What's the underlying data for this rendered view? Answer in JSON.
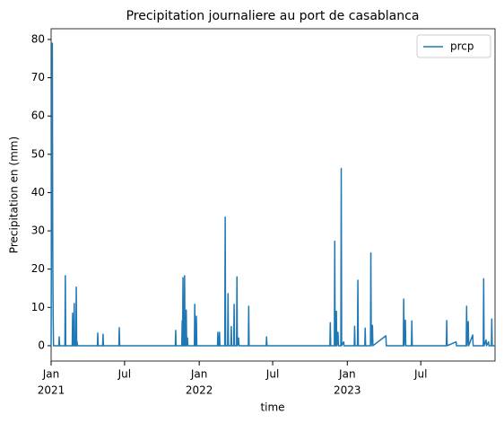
{
  "chart_data": {
    "type": "line",
    "title": "Precipitation journaliere au port de casablanca",
    "xlabel": "time",
    "ylabel": "Precipitation en (mm)",
    "xlim": [
      "2021-01-01",
      "2023-12-31"
    ],
    "xticks": [
      {
        "value": "2021-01-01",
        "label": "Jan",
        "sublabel": "2021"
      },
      {
        "value": "2021-07-01",
        "label": "Jul"
      },
      {
        "value": "2022-01-01",
        "label": "Jan",
        "sublabel": "2022"
      },
      {
        "value": "2022-07-01",
        "label": "Jul"
      },
      {
        "value": "2023-01-01",
        "label": "Jan",
        "sublabel": "2023"
      },
      {
        "value": "2023-07-01",
        "label": "Jul"
      }
    ],
    "ylim": [
      -4.0,
      82.8
    ],
    "yticks": [
      0,
      10,
      20,
      30,
      40,
      50,
      60,
      70,
      80
    ],
    "legend": "upper right",
    "x": [
      "2021-01-01",
      "2021-01-03",
      "2021-01-04",
      "2021-01-05",
      "2021-01-06",
      "2021-01-07",
      "2021-01-20",
      "2021-01-21",
      "2021-01-22",
      "2021-02-04",
      "2021-02-05",
      "2021-02-06",
      "2021-02-22",
      "2021-02-23",
      "2021-02-24",
      "2021-02-26",
      "2021-02-27",
      "2021-02-28",
      "2021-03-03",
      "2021-03-04",
      "2021-03-05",
      "2021-03-06",
      "2021-03-07",
      "2021-04-25",
      "2021-04-26",
      "2021-04-27",
      "2021-05-08",
      "2021-05-09",
      "2021-05-10",
      "2021-06-17",
      "2021-06-18",
      "2021-06-19",
      "2021-11-03",
      "2021-11-04",
      "2021-11-05",
      "2021-11-19",
      "2021-11-20",
      "2021-11-21",
      "2021-11-22",
      "2021-11-23",
      "2021-11-25",
      "2021-11-26",
      "2021-11-27",
      "2021-11-29",
      "2021-11-30",
      "2021-12-01",
      "2021-12-03",
      "2021-12-04",
      "2021-12-20",
      "2021-12-21",
      "2021-12-22",
      "2021-12-24",
      "2021-12-25",
      "2021-12-26",
      "2022-02-15",
      "2022-02-16",
      "2022-02-17",
      "2022-02-19",
      "2022-02-20",
      "2022-02-21",
      "2022-03-05",
      "2022-03-06",
      "2022-03-07",
      "2022-03-12",
      "2022-03-13",
      "2022-03-14",
      "2022-03-20",
      "2022-03-21",
      "2022-03-22",
      "2022-03-27",
      "2022-03-28",
      "2022-03-29",
      "2022-04-03",
      "2022-04-04",
      "2022-04-05",
      "2022-04-08",
      "2022-04-09",
      "2022-05-02",
      "2022-05-03",
      "2022-05-04",
      "2022-06-15",
      "2022-06-16",
      "2022-06-17",
      "2022-11-19",
      "2022-11-20",
      "2022-11-21",
      "2022-11-30",
      "2022-12-01",
      "2022-12-02",
      "2022-12-04",
      "2022-12-05",
      "2022-12-06",
      "2022-12-09",
      "2022-12-10",
      "2022-12-16",
      "2022-12-17",
      "2022-12-18",
      "2022-12-23",
      "2022-12-24",
      "2023-01-18",
      "2023-01-19",
      "2023-01-20",
      "2023-01-26",
      "2023-01-27",
      "2023-01-28",
      "2023-02-13",
      "2023-02-14",
      "2023-02-15",
      "2023-02-27",
      "2023-02-28",
      "2023-03-01",
      "2023-03-04",
      "2023-03-05",
      "2023-04-06",
      "2023-04-07",
      "2023-05-19",
      "2023-05-20",
      "2023-05-21",
      "2023-05-24",
      "2023-05-25",
      "2023-06-08",
      "2023-06-09",
      "2023-06-10",
      "2023-09-02",
      "2023-09-03",
      "2023-09-04",
      "2023-09-26",
      "2023-09-27",
      "2023-10-21",
      "2023-10-22",
      "2023-10-23",
      "2023-10-26",
      "2023-10-27",
      "2023-11-06",
      "2023-11-07",
      "2023-12-02",
      "2023-12-03",
      "2023-12-04",
      "2023-12-09",
      "2023-12-10",
      "2023-12-15",
      "2023-12-16",
      "2023-12-22",
      "2023-12-23",
      "2023-12-24",
      "2023-12-31"
    ],
    "series": [
      {
        "name": "prcp",
        "color": "#1f77b4",
        "values": [
          0,
          79,
          79,
          25,
          8,
          0,
          0,
          2.3,
          0,
          0,
          18.3,
          0,
          0,
          8.5,
          0,
          0,
          11,
          0,
          0,
          15.3,
          0,
          1,
          0,
          0,
          3.3,
          0,
          0,
          3,
          0,
          0,
          4.7,
          0,
          0,
          4,
          0,
          0,
          6.5,
          0,
          17.8,
          0,
          0,
          18.3,
          0,
          0,
          9.3,
          0,
          2,
          0,
          0,
          10.8,
          0,
          0,
          7.7,
          0,
          0,
          3.5,
          0,
          0,
          3.5,
          0,
          0,
          33.6,
          0,
          0,
          13.6,
          0,
          0,
          5,
          0,
          0,
          10.8,
          0,
          0,
          18,
          0,
          2,
          0,
          0,
          10.3,
          0,
          0,
          2.3,
          0,
          0,
          6,
          0,
          0,
          27.3,
          0,
          0,
          9,
          0,
          3.5,
          0,
          0,
          46.3,
          0,
          1,
          0,
          0,
          5.1,
          0,
          0,
          17.1,
          0,
          0,
          4.6,
          0,
          0,
          24.2,
          0,
          5.3,
          0,
          2.6,
          0,
          0,
          12.2,
          0,
          6.7,
          0,
          0,
          6.5,
          0,
          0,
          6.6,
          0,
          1,
          0,
          0,
          10.3,
          0,
          6.3,
          0,
          2.8,
          0,
          0,
          17.5,
          0,
          1.5,
          0,
          1,
          0,
          0,
          7,
          0,
          0
        ]
      }
    ]
  }
}
